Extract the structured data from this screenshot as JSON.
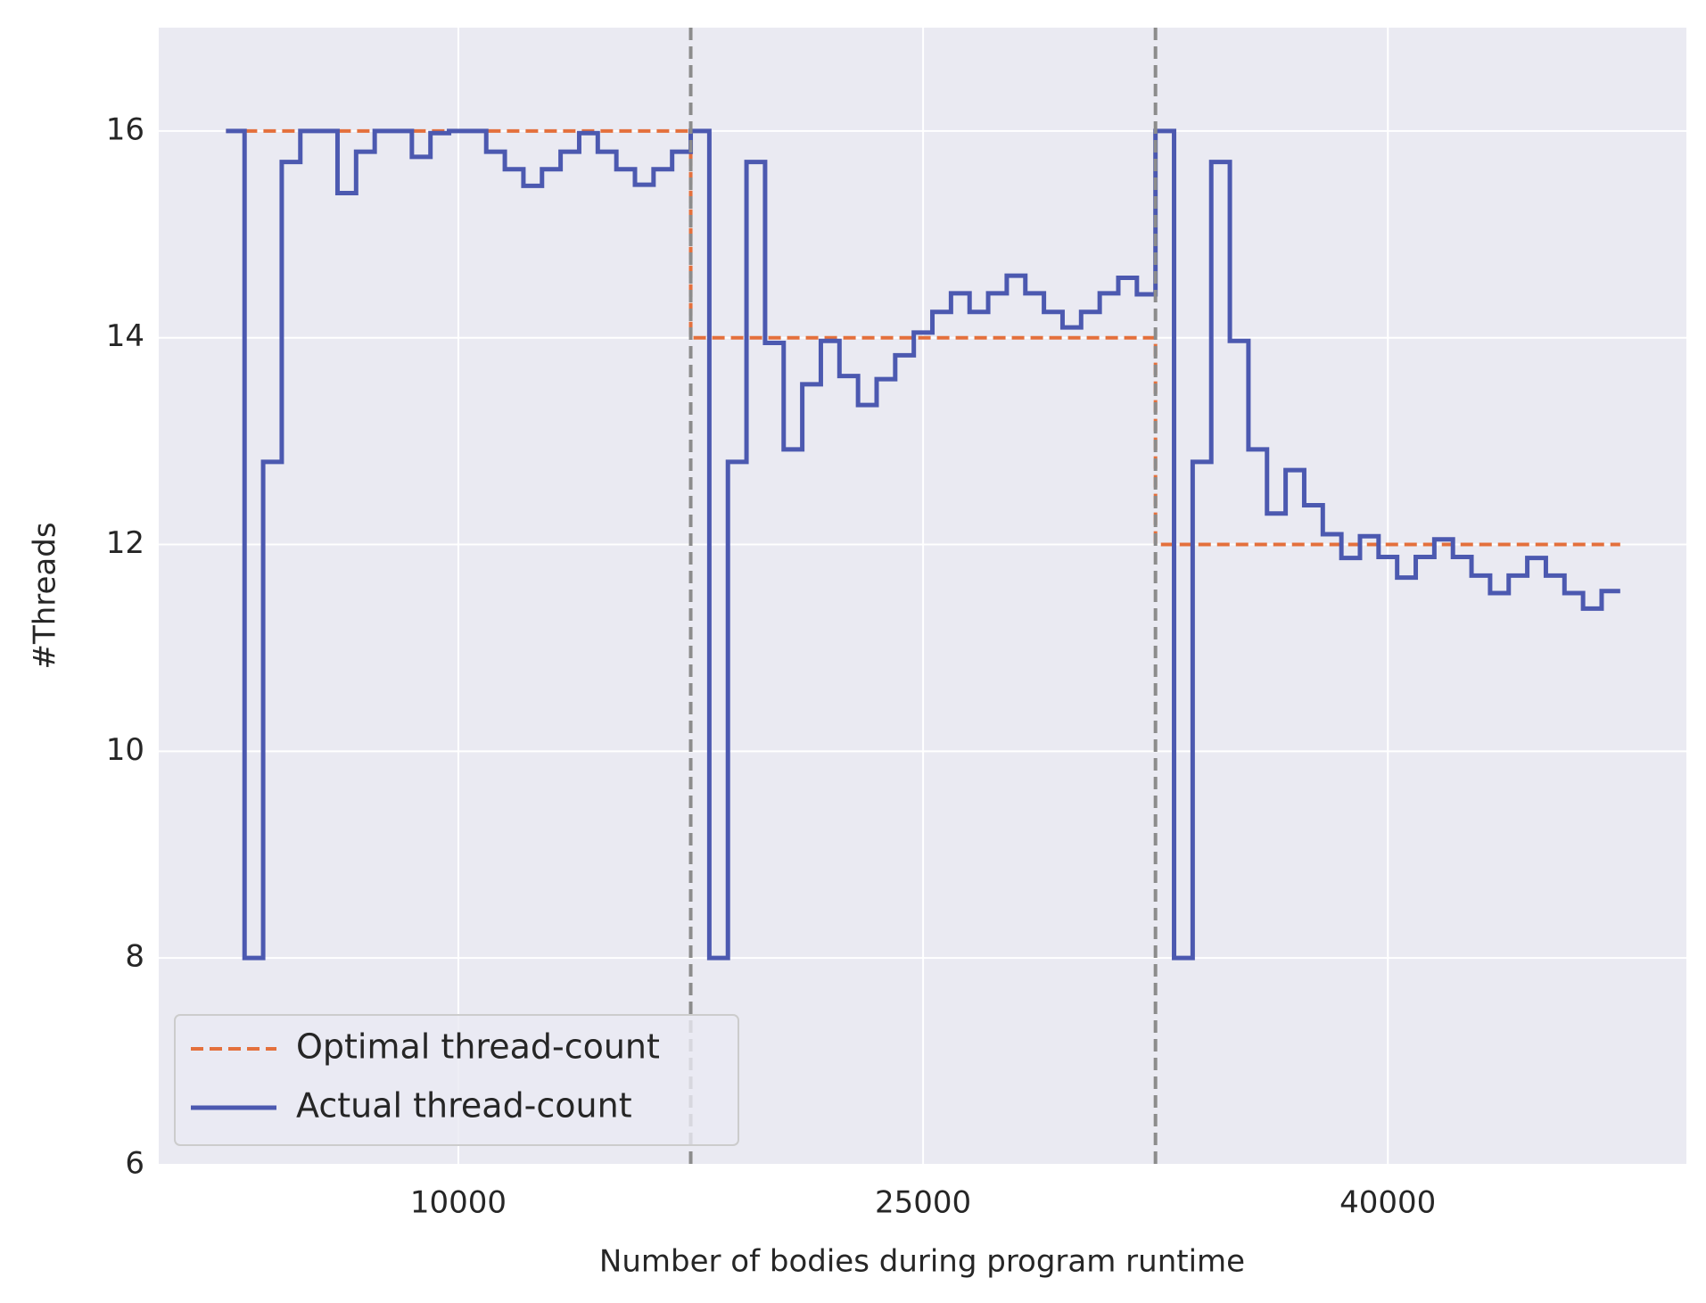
{
  "chart_data": {
    "type": "line",
    "drawstyle": "steps-post",
    "xlabel": "Number of bodies during program runtime",
    "ylabel": "#Threads",
    "xlim": [
      330,
      49635
    ],
    "ylim": [
      6,
      17
    ],
    "xticks": [
      10000,
      25000,
      40000
    ],
    "yticks": [
      6,
      8,
      10,
      12,
      14,
      16
    ],
    "grid": true,
    "legend": "lower left",
    "vlines": [
      17500,
      32500
    ],
    "vline_color": "#8c8c8c",
    "series": [
      {
        "name": "Optimal thread-count",
        "color": "#e4703c",
        "style": "dashed",
        "x": [
          2500,
          17500,
          32500,
          47500
        ],
        "values": [
          16,
          14,
          12,
          12
        ]
      },
      {
        "name": "Actual thread-count",
        "color": "#4c59b0",
        "style": "solid",
        "x": [
          2500,
          3100,
          3700,
          4300,
          4900,
          5500,
          6100,
          6700,
          7300,
          7900,
          8500,
          9100,
          9700,
          10300,
          10900,
          11500,
          12100,
          12700,
          13300,
          13900,
          14500,
          15100,
          15700,
          16300,
          16900,
          17500,
          18100,
          18700,
          19300,
          19900,
          20500,
          21100,
          21700,
          22300,
          22900,
          23500,
          24100,
          24700,
          25300,
          25900,
          26500,
          27100,
          27700,
          28300,
          28900,
          29500,
          30100,
          30700,
          31300,
          31900,
          32500,
          33100,
          33700,
          34300,
          34900,
          35500,
          36100,
          36700,
          37300,
          37900,
          38500,
          39100,
          39700,
          40300,
          40900,
          41500,
          42100,
          42700,
          43300,
          43900,
          44500,
          45100,
          45700,
          46300,
          46900,
          47500
        ],
        "values": [
          16,
          8,
          12.8,
          15.7,
          16,
          16,
          15.4,
          15.8,
          16,
          16,
          15.75,
          15.98,
          16,
          16,
          15.8,
          15.63,
          15.47,
          15.63,
          15.8,
          15.98,
          15.8,
          15.63,
          15.48,
          15.63,
          15.8,
          16,
          8,
          12.8,
          15.7,
          13.95,
          12.92,
          13.55,
          13.97,
          13.63,
          13.35,
          13.6,
          13.83,
          14.05,
          14.25,
          14.43,
          14.25,
          14.43,
          14.6,
          14.43,
          14.25,
          14.1,
          14.25,
          14.43,
          14.58,
          14.42,
          16,
          8,
          12.8,
          15.7,
          13.97,
          12.92,
          12.3,
          12.72,
          12.38,
          12.1,
          11.87,
          12.08,
          11.88,
          11.68,
          11.88,
          12.05,
          11.88,
          11.7,
          11.53,
          11.7,
          11.87,
          11.7,
          11.53,
          11.38,
          11.55,
          11.55
        ]
      }
    ]
  }
}
